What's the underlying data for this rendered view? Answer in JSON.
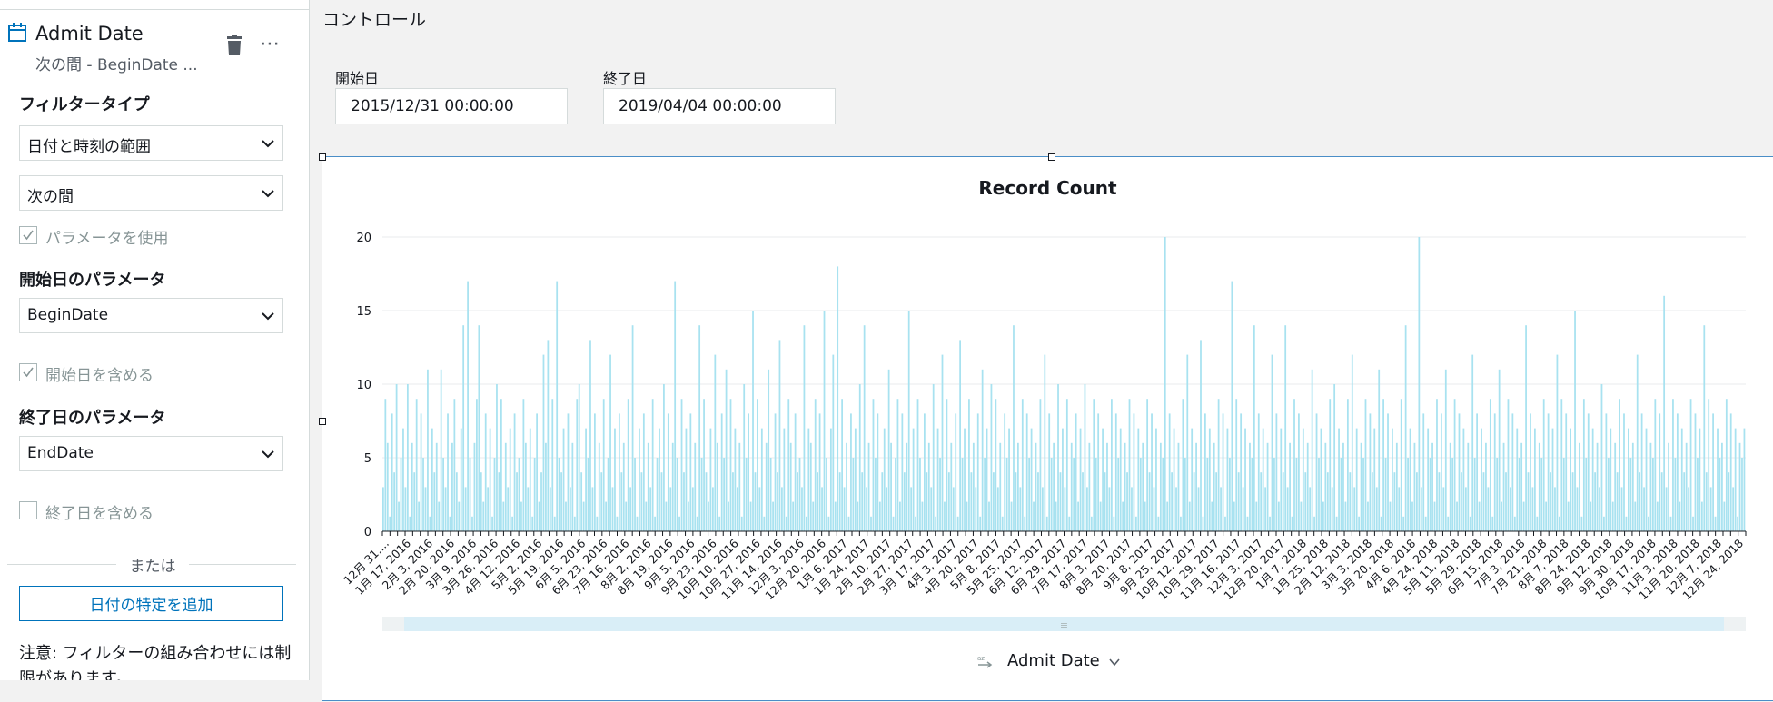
{
  "filter_panel": {
    "title": "Admit Date",
    "subtitle": "次の間 - BeginDate ...",
    "filter_type_label": "フィルタータイプ",
    "filter_type_value": "日付と時刻の範囲",
    "condition_value": "次の間",
    "use_parameters_label": "パラメータを使用",
    "use_parameters_checked": true,
    "start_param_label": "開始日のパラメータ",
    "start_param_value": "BeginDate",
    "include_start_label": "開始日を含める",
    "include_start_checked": true,
    "end_param_label": "終了日のパラメータ",
    "end_param_value": "EndDate",
    "include_end_label": "終了日を含める",
    "include_end_checked": false,
    "or_text": "または",
    "add_button_label": "日付の特定を追加",
    "note": "注意: フィルターの組み合わせには制限があります。",
    "icons": [
      "calendar-icon",
      "trash-icon",
      "more-icon",
      "chevron-down-icon",
      "check-icon"
    ]
  },
  "controls": {
    "title": "コントロール",
    "start_label": "開始日",
    "start_value": "2015/12/31 00:00:00",
    "end_label": "終了日",
    "end_value": "2019/04/04 00:00:00"
  },
  "visual": {
    "x_field_label": "Admit Date",
    "scrollbar_grip": "≡"
  },
  "colors": {
    "accent": "#0073bb",
    "bar": "#a8e2f0",
    "selection_border": "#4a8ec7"
  },
  "chart_data": {
    "type": "bar",
    "title": "Record Count",
    "xlabel": "",
    "ylabel": "",
    "ylim": [
      0,
      20
    ],
    "yticks": [
      0,
      5,
      10,
      15,
      20
    ],
    "grid": true,
    "x_range": [
      "2015-12-31",
      "2019-04-04"
    ],
    "x_tick_labels": [
      "12月 31,...",
      "1月 17, 2016",
      "2月 3, 2016",
      "2月 20, 2016",
      "3月 9, 2016",
      "3月 26, 2016",
      "4月 12, 2016",
      "5月 2, 2016",
      "5月 19, 2016",
      "6月 5, 2016",
      "6月 23, 2016",
      "7月 16, 2016",
      "8月 2, 2016",
      "8月 19, 2016",
      "9月 5, 2016",
      "9月 23, 2016",
      "10月 10, 2016",
      "10月 27, 2016",
      "11月 14, 2016",
      "12月 3, 2016",
      "12月 20, 2016",
      "1月 6, 2017",
      "1月 24, 2017",
      "2月 10, 2017",
      "2月 27, 2017",
      "3月 17, 2017",
      "4月 3, 2017",
      "4月 20, 2017",
      "5月 8, 2017",
      "5月 25, 2017",
      "6月 12, 2017",
      "6月 29, 2017",
      "7月 17, 2017",
      "8月 3, 2017",
      "8月 20, 2017",
      "9月 8, 2017",
      "9月 25, 2017",
      "10月 12, 2017",
      "10月 29, 2017",
      "11月 16, 2017",
      "12月 3, 2017",
      "12月 20, 2017",
      "1月 7, 2018",
      "1月 25, 2018",
      "2月 12, 2018",
      "3月 3, 2018",
      "3月 20, 2018",
      "4月 6, 2018",
      "4月 24, 2018",
      "5月 11, 2018",
      "5月 29, 2018",
      "6月 15, 2018",
      "7月 3, 2018",
      "7月 21, 2018",
      "8月 7, 2018",
      "8月 24, 2018",
      "9月 12, 2018",
      "9月 30, 2018",
      "10月 17, 2018",
      "11月 3, 2018",
      "11月 20, 2018",
      "12月 7, 2018",
      "12月 24, 2018"
    ],
    "values": [
      3,
      9,
      6,
      1,
      8,
      4,
      10,
      2,
      5,
      7,
      3,
      10,
      1,
      6,
      4,
      9,
      2,
      8,
      5,
      3,
      11,
      1,
      7,
      4,
      6,
      2,
      11,
      5,
      3,
      8,
      1,
      6,
      9,
      4,
      2,
      7,
      14,
      3,
      17,
      5,
      1,
      6,
      9,
      14,
      4,
      2,
      8,
      3,
      7,
      1,
      5,
      10,
      4,
      9,
      2,
      6,
      3,
      7,
      1,
      8,
      4,
      5,
      2,
      9,
      6,
      3,
      7,
      1,
      5,
      8,
      2,
      4,
      12,
      6,
      13,
      3,
      9,
      1,
      17,
      5,
      4,
      7,
      2,
      8,
      3,
      6,
      1,
      9,
      10,
      4,
      2,
      7,
      5,
      13,
      3,
      8,
      1,
      6,
      4,
      9,
      2,
      5,
      12,
      3,
      7,
      1,
      8,
      4,
      6,
      2,
      9,
      3,
      14,
      5,
      1,
      7,
      4,
      8,
      2,
      6,
      3,
      9,
      1,
      5,
      7,
      4,
      10,
      2,
      8,
      3,
      6,
      17,
      5,
      1,
      9,
      4,
      7,
      2,
      8,
      3,
      6,
      1,
      14,
      5,
      9,
      4,
      2,
      7,
      3,
      12,
      6,
      1,
      8,
      5,
      11,
      2,
      9,
      4,
      7,
      3,
      6,
      1,
      10,
      5,
      8,
      2,
      15,
      4,
      9,
      3,
      7,
      1,
      6,
      11,
      5,
      2,
      8,
      4,
      13,
      3,
      7,
      1,
      9,
      6,
      2,
      8,
      4,
      5,
      3,
      14,
      1,
      7,
      6,
      2,
      9,
      4,
      8,
      3,
      15,
      5,
      1,
      7,
      12,
      2,
      18,
      4,
      9,
      3,
      6,
      1,
      8,
      5,
      7,
      2,
      10,
      4,
      14,
      3,
      6,
      1,
      9,
      5,
      8,
      2,
      4,
      7,
      3,
      11,
      6,
      1,
      5,
      9,
      2,
      8,
      4,
      6,
      15,
      3,
      7,
      1,
      9,
      5,
      2,
      8,
      4,
      6,
      3,
      10,
      1,
      7,
      5,
      12,
      2,
      9,
      4,
      6,
      3,
      8,
      1,
      13,
      5,
      7,
      2,
      9,
      4,
      6,
      3,
      8,
      1,
      11,
      5,
      7,
      2,
      10,
      4,
      9,
      3,
      6,
      1,
      8,
      5,
      7,
      2,
      14,
      4,
      6,
      3,
      9,
      1,
      8,
      5,
      7,
      2,
      6,
      4,
      9,
      3,
      12,
      1,
      8,
      5,
      6,
      2,
      10,
      4,
      7,
      3,
      9,
      1,
      6,
      5,
      8,
      2,
      7,
      4,
      10,
      3,
      6,
      1,
      9,
      5,
      8,
      2,
      7,
      4,
      6,
      3,
      9,
      1,
      8,
      5,
      7,
      2,
      6,
      4,
      9,
      3,
      8,
      1,
      7,
      5,
      6,
      2,
      9,
      4,
      8,
      3,
      7,
      1,
      6,
      5,
      20,
      2,
      8,
      4,
      7,
      3,
      6,
      1,
      9,
      5,
      12,
      2,
      7,
      4,
      6,
      3,
      13,
      1,
      8,
      5,
      7,
      2,
      6,
      4,
      9,
      3,
      8,
      1,
      7,
      5,
      17,
      2,
      9,
      4,
      8,
      3,
      7,
      1,
      6,
      5,
      14,
      2,
      8,
      4,
      7,
      3,
      6,
      1,
      12,
      5,
      8,
      2,
      7,
      4,
      14,
      3,
      6,
      1,
      9,
      5,
      8,
      2,
      7,
      4,
      6,
      3,
      11,
      1,
      8,
      5,
      7,
      2,
      6,
      4,
      9,
      3,
      10,
      1,
      7,
      5,
      6,
      2,
      9,
      4,
      12,
      3,
      7,
      1,
      6,
      5,
      9,
      2,
      8,
      4,
      7,
      3,
      11,
      1,
      9,
      5,
      8,
      2,
      7,
      4,
      6,
      3,
      9,
      1,
      14,
      5,
      7,
      2,
      6,
      4,
      20,
      3,
      8,
      1,
      7,
      5,
      6,
      2,
      9,
      4,
      8,
      3,
      11,
      1,
      6,
      5,
      9,
      2,
      8,
      4,
      7,
      3,
      6,
      1,
      12,
      5,
      8,
      2,
      7,
      4,
      6,
      3,
      9,
      1,
      8,
      5,
      11,
      2,
      6,
      4,
      9,
      3,
      8,
      1,
      7,
      5,
      6,
      2,
      14,
      4,
      8,
      3,
      7,
      1,
      6,
      5,
      9,
      2,
      8,
      4,
      7,
      3,
      12,
      1,
      9,
      5,
      8,
      2,
      7,
      4,
      15,
      3,
      6,
      1,
      9,
      5,
      8,
      2,
      7,
      4,
      6,
      3,
      10,
      1,
      8,
      5,
      7,
      2,
      6,
      4,
      9,
      3,
      8,
      1,
      7,
      5,
      6,
      2,
      12,
      4,
      8,
      3,
      7,
      1,
      6,
      5,
      9,
      2,
      8,
      4,
      16,
      3,
      6,
      1,
      9,
      5,
      8,
      2,
      7,
      4,
      6,
      3,
      9,
      1,
      8,
      5,
      7,
      2,
      14,
      4,
      9,
      3,
      8,
      1,
      7,
      5,
      6,
      2,
      9,
      4,
      8,
      3,
      7,
      1,
      6,
      5,
      7
    ]
  }
}
